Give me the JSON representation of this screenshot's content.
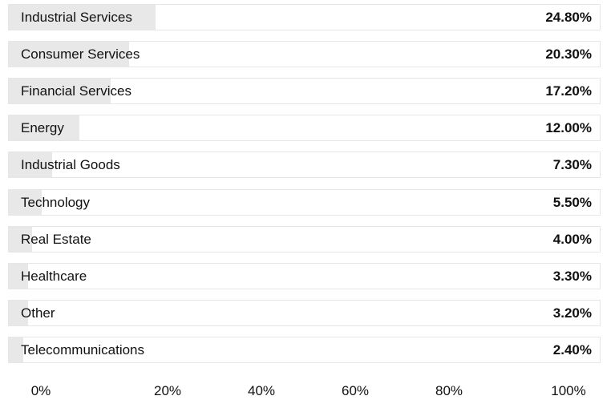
{
  "chart_data": {
    "type": "bar",
    "orientation": "horizontal",
    "categories": [
      "Industrial Services",
      "Consumer Services",
      "Financial Services",
      "Energy",
      "Industrial Goods",
      "Technology",
      "Real Estate",
      "Healthcare",
      "Other",
      "Telecommunications"
    ],
    "values": [
      24.8,
      20.3,
      17.2,
      12.0,
      7.3,
      5.5,
      4.0,
      3.3,
      3.2,
      2.4
    ],
    "value_labels": [
      "24.80%",
      "20.30%",
      "17.20%",
      "12.00%",
      "7.30%",
      "5.50%",
      "4.00%",
      "3.30%",
      "3.20%",
      "2.40%"
    ],
    "xlim": [
      0,
      100
    ],
    "x_ticks": [
      {
        "value": 0,
        "label": "0%"
      },
      {
        "value": 20,
        "label": "20%"
      },
      {
        "value": 40,
        "label": "40%"
      },
      {
        "value": 60,
        "label": "60%"
      },
      {
        "value": 80,
        "label": "80%"
      },
      {
        "value": 100,
        "label": "100%"
      }
    ],
    "bar_color": "#e8e8e8",
    "grid": false
  }
}
